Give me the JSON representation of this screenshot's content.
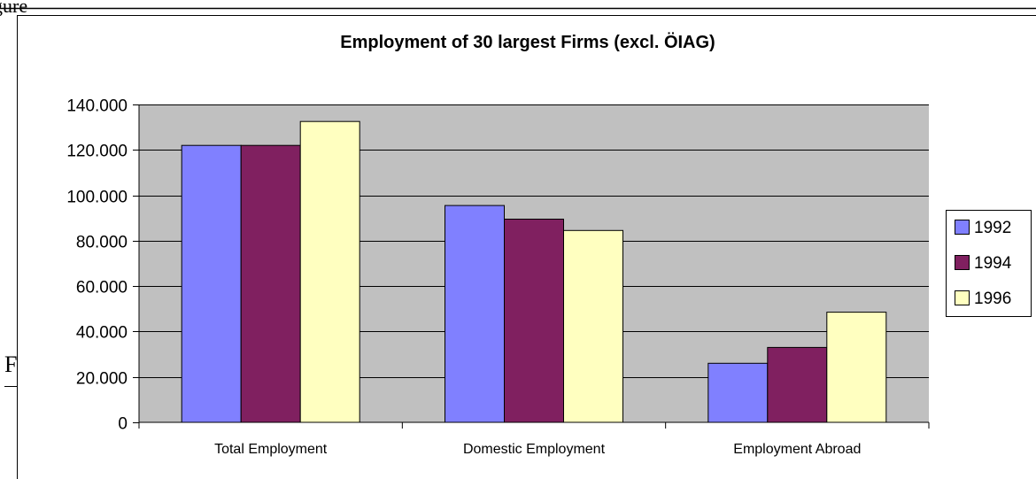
{
  "page": {
    "header_fragment": "gure",
    "side_fragment": "F"
  },
  "chart_data": {
    "type": "bar",
    "title": "Employment of 30 largest Firms (excl. ÖIAG)",
    "xlabel": "",
    "ylabel": "",
    "categories": [
      "Total Employment",
      "Domestic Employment",
      "Employment Abroad"
    ],
    "series": [
      {
        "name": "1992",
        "color": "#8080ff",
        "values": [
          122000,
          95500,
          26000
        ]
      },
      {
        "name": "1994",
        "color": "#802060",
        "values": [
          122000,
          89500,
          33000
        ]
      },
      {
        "name": "1996",
        "color": "#ffffc0",
        "values": [
          132500,
          84500,
          48500
        ]
      }
    ],
    "ylim": [
      0,
      140000
    ],
    "yticks": [
      0,
      20000,
      40000,
      60000,
      80000,
      100000,
      120000,
      140000
    ],
    "ytick_labels": [
      "0",
      "20.000",
      "40.000",
      "60.000",
      "80.000",
      "100.000",
      "120.000",
      "140.000"
    ],
    "grid": true,
    "legend_position": "right",
    "plot_background": "#c0c0c0"
  }
}
